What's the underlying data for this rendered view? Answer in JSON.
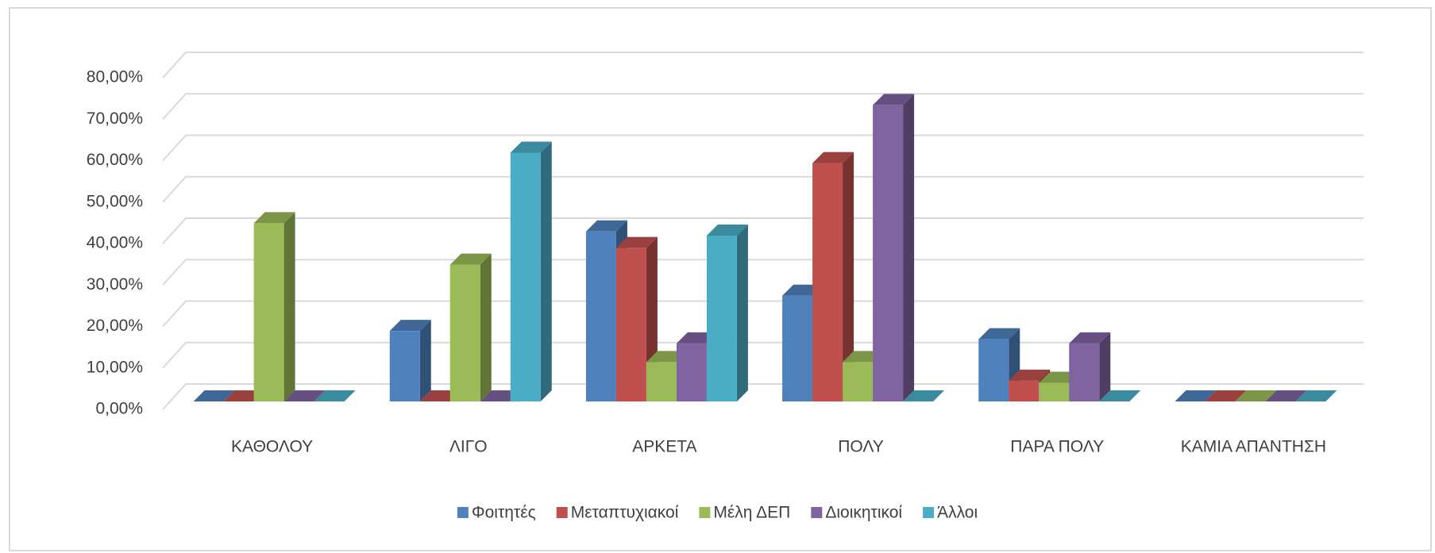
{
  "chart_data": {
    "type": "bar3d",
    "categories": [
      "ΚΑΘΟΛΟΥ",
      "ΛΙΓΟ",
      "ΑΡΚΕΤΑ",
      "ΠΟΛΥ",
      "ΠΑΡΑ ΠΟΛΥ",
      "ΚΑΜΙΑ ΑΠΑΝΤΗΣΗ"
    ],
    "series": [
      {
        "name": "Φοιτητές",
        "color": "#4f81bd",
        "values": [
          0,
          17,
          41,
          25.5,
          15,
          0
        ]
      },
      {
        "name": "Μεταπτυχιακοί",
        "color": "#c0504d",
        "values": [
          0,
          0,
          37,
          57.5,
          5,
          0
        ]
      },
      {
        "name": "Μέλη ΔΕΠ",
        "color": "#9bbb59",
        "values": [
          43,
          33,
          9.5,
          9.5,
          4.5,
          0
        ]
      },
      {
        "name": "Διοικητικοί",
        "color": "#8064a2",
        "values": [
          0,
          0,
          14,
          71.5,
          14,
          0
        ]
      },
      {
        "name": "Άλλοι",
        "color": "#4bacc6",
        "values": [
          0,
          60,
          40,
          0,
          0,
          0
        ]
      }
    ],
    "ylim": [
      0,
      80
    ],
    "yticks": [
      {
        "value": 0,
        "label": "0,00%"
      },
      {
        "value": 10,
        "label": "10,00%"
      },
      {
        "value": 20,
        "label": "20,00%"
      },
      {
        "value": 30,
        "label": "30,00%"
      },
      {
        "value": 40,
        "label": "40,00%"
      },
      {
        "value": 50,
        "label": "50,00%"
      },
      {
        "value": 60,
        "label": "60,00%"
      },
      {
        "value": 70,
        "label": "70,00%"
      },
      {
        "value": 80,
        "label": "80,00%"
      }
    ],
    "grid": true,
    "legend": "bottom"
  }
}
